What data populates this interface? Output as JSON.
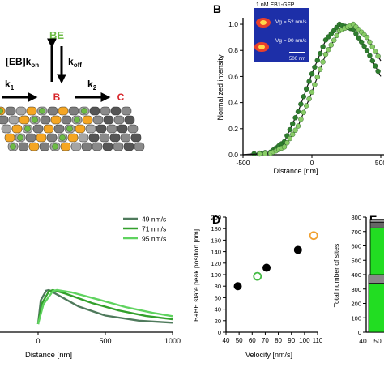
{
  "scheme": {
    "be_label": "BE",
    "kon_prefix": "[EB]k",
    "kon_sub": "on",
    "koff_prefix": "k",
    "koff_sub": "off",
    "k1_prefix": "k",
    "k1_sub": "1",
    "k2_prefix": "k",
    "k2_sub": "2",
    "b_label": "B",
    "c_label": "C",
    "colors": {
      "be": "#6dbb45",
      "b": "#d7262b",
      "c": "#d7262b",
      "orange": "#f5a623",
      "grey": "#7d7d7d",
      "green": "#6dbb45"
    }
  },
  "panel_letters": {
    "b": "B",
    "d": "D",
    "e": "E"
  },
  "inset": {
    "title": "1 nM EB1-GFP",
    "label_top": "Vg = 52 nm/s",
    "label_bottom": "Vg = 90 nm/s",
    "scalebar": "500 nm"
  },
  "chart_data": [
    {
      "panel": "B",
      "type": "line",
      "xlabel": "Distance [nm]",
      "ylabel": "Normalized intensity",
      "xlim": [
        -500,
        500
      ],
      "ylim": [
        0,
        1.05
      ],
      "xticks": [
        "-500",
        "0",
        "500"
      ],
      "yticks": [
        "0.0",
        "0.2",
        "0.4",
        "0.6",
        "0.8",
        "1.0"
      ],
      "series": [
        {
          "color": "#2e7d2e",
          "values": [
            [
              -500,
              0.0
            ],
            [
              -300,
              0.02
            ],
            [
              -200,
              0.1
            ],
            [
              -100,
              0.33
            ],
            [
              0,
              0.62
            ],
            [
              100,
              0.88
            ],
            [
              200,
              1.0
            ],
            [
              300,
              0.96
            ],
            [
              400,
              0.8
            ],
            [
              500,
              0.6
            ]
          ]
        },
        {
          "color": "#88cc66",
          "values": [
            [
              -500,
              0.0
            ],
            [
              -300,
              0.01
            ],
            [
              -200,
              0.06
            ],
            [
              -100,
              0.22
            ],
            [
              0,
              0.48
            ],
            [
              100,
              0.77
            ],
            [
              200,
              0.95
            ],
            [
              300,
              1.0
            ],
            [
              400,
              0.9
            ],
            [
              500,
              0.72
            ]
          ]
        }
      ]
    },
    {
      "panel": "C",
      "type": "line",
      "xlabel": "Distance [nm]",
      "xlim": [
        -500,
        1000
      ],
      "xticks": [
        "0",
        "500",
        "1000"
      ],
      "series": [
        {
          "name": "49 nm/s",
          "color": "#4f7a5c",
          "values": [
            [
              0,
              0.0
            ],
            [
              20,
              0.7
            ],
            [
              60,
              0.98
            ],
            [
              80,
              1.0
            ],
            [
              150,
              0.85
            ],
            [
              300,
              0.52
            ],
            [
              500,
              0.25
            ],
            [
              750,
              0.1
            ],
            [
              1000,
              0.04
            ]
          ]
        },
        {
          "name": "71 nm/s",
          "color": "#33a02c",
          "values": [
            [
              0,
              0.0
            ],
            [
              30,
              0.62
            ],
            [
              80,
              0.96
            ],
            [
              110,
              1.0
            ],
            [
              200,
              0.9
            ],
            [
              400,
              0.62
            ],
            [
              600,
              0.4
            ],
            [
              800,
              0.24
            ],
            [
              1000,
              0.14
            ]
          ]
        },
        {
          "name": "95 nm/s",
          "color": "#5fd35f",
          "values": [
            [
              0,
              0.0
            ],
            [
              40,
              0.58
            ],
            [
              110,
              0.97
            ],
            [
              140,
              1.0
            ],
            [
              250,
              0.93
            ],
            [
              450,
              0.72
            ],
            [
              650,
              0.5
            ],
            [
              850,
              0.33
            ],
            [
              1000,
              0.23
            ]
          ]
        }
      ]
    },
    {
      "panel": "D",
      "type": "scatter",
      "xlabel": "Velocity [nm/s]",
      "ylabel": "B+BE state peak position [nm]",
      "xlim": [
        40,
        110
      ],
      "ylim": [
        0,
        200
      ],
      "xticks": [
        "40",
        "50",
        "60",
        "70",
        "80",
        "90",
        "100",
        "110"
      ],
      "yticks": [
        "0",
        "20",
        "40",
        "60",
        "80",
        "100",
        "120",
        "140",
        "160",
        "180",
        "200"
      ],
      "points": [
        {
          "x": 49,
          "y": 80,
          "style": "filled",
          "color": "#000000"
        },
        {
          "x": 64,
          "y": 97,
          "style": "open",
          "color": "#44bb44"
        },
        {
          "x": 71,
          "y": 112,
          "style": "filled",
          "color": "#000000"
        },
        {
          "x": 95,
          "y": 143,
          "style": "filled",
          "color": "#000000"
        },
        {
          "x": 107,
          "y": 168,
          "style": "open",
          "color": "#f0a030"
        }
      ]
    },
    {
      "panel": "E",
      "type": "bar",
      "ylabel": "Total number of sites",
      "ylim": [
        0,
        800
      ],
      "yticks": [
        "0",
        "100",
        "200",
        "300",
        "400",
        "500",
        "600",
        "700",
        "800"
      ],
      "xticks": [
        "40",
        "50"
      ],
      "bars": [
        {
          "category": "50",
          "segments": [
            {
              "value": 340,
              "color": "#22dd22"
            },
            {
              "value": 60,
              "color": "#888888"
            }
          ]
        },
        {
          "category": "50b",
          "segments": [
            {
              "value": 725,
              "color": "#22dd22"
            },
            {
              "value": 40,
              "color": "#666666"
            },
            {
              "value": 20,
              "color": "#999999"
            }
          ]
        }
      ]
    }
  ]
}
